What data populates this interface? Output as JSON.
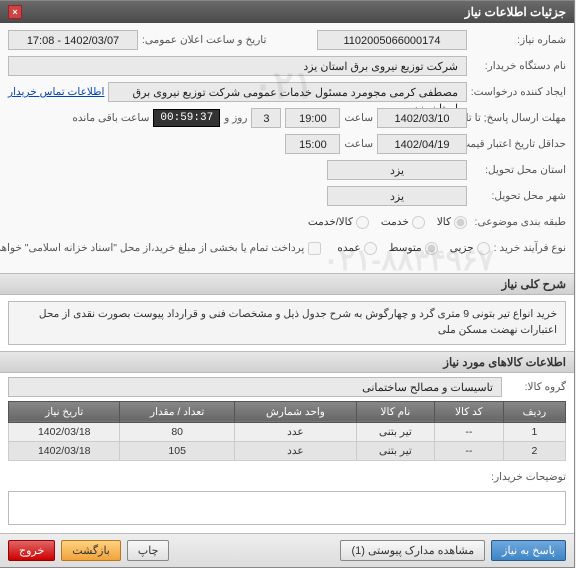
{
  "window": {
    "title": "جزئیات اطلاعات نیاز"
  },
  "labels": {
    "need_no": "شماره نیاز:",
    "announcement": "تاریخ و ساعت اعلان عمومی:",
    "buyer_org": "نام دستگاه خریدار:",
    "creator": "ایجاد کننده درخواست:",
    "deadline_send": "مهلت ارسال پاسخ; تا تاریخ:",
    "hour": "ساعت",
    "day_and": "روز و",
    "remaining": "ساعت باقی مانده",
    "price_valid": "حداقل تاریخ اعتبار قیمت; تا تاریخ:",
    "province": "استان محل تحویل:",
    "city": "شهر محل تحویل:",
    "subject_type": "طبقه بندی موضوعی:",
    "purchase_type": "نوع فرآیند خرید :",
    "contact_link": "اطلاعات تماس خریدار",
    "payment_note": "پرداخت تمام یا بخشی از مبلغ خرید،از محل \"اسناد خزانه اسلامی\" خواهد بود.",
    "subject_goods": "کالا",
    "subject_service": "خدمت",
    "subject_both": "کالا/خدمت",
    "pt_small": "جزیی",
    "pt_medium": "متوسط",
    "pt_large": "عمده"
  },
  "fields": {
    "need_no": "1102005066000174",
    "announce_range": "1402/03/07 - 17:08",
    "buyer_org": "شرکت توزیع نیروی برق استان یزد",
    "creator": "مصطفی کرمی مجومرد مسئول خدمات عمومی شرکت توزیع نیروی برق استان یزد",
    "deadline_date": "1402/03/10",
    "deadline_time": "19:00",
    "days_left": "3",
    "timer": "00:59:37",
    "price_date": "1402/04/19",
    "price_time": "15:00",
    "province": "یزد",
    "city": "یزد"
  },
  "sections": {
    "overall_desc": "شرح کلی نیاز",
    "goods_info": "اطلاعات کالاهای مورد نیاز",
    "goods_group_lbl": "گروه کالا:",
    "goods_group_val": "تاسیسات و مصالح ساختمانی",
    "buyer_notes_lbl": "توضیحات خریدار:"
  },
  "description": "خرید انواع تیر بتونی 9  متری گرد و چهارگوش به شرح جدول ذیل و مشخصات فنی و قرارداد پیوست بصورت نقدی از محل اعتبارات نهضت مسکن ملی",
  "table": {
    "columns": [
      "ردیف",
      "کد کالا",
      "نام کالا",
      "واحد شمارش",
      "تعداد / مقدار",
      "تاریخ نیاز"
    ],
    "rows": [
      [
        "1",
        "--",
        "تیر بتنی",
        "عدد",
        "80",
        "1402/03/18"
      ],
      [
        "2",
        "--",
        "تیر بتنی",
        "عدد",
        "105",
        "1402/03/18"
      ]
    ]
  },
  "footer": {
    "reply": "پاسخ به نیاز",
    "attachments": "مشاهده مدارک پیوستی (1)",
    "print": "چاپ",
    "back": "بازگشت",
    "exit": "خروج"
  },
  "watermarks": [
    "۰۲۱",
    "۰۲۱-۸۸۳۴۹۶۷"
  ]
}
